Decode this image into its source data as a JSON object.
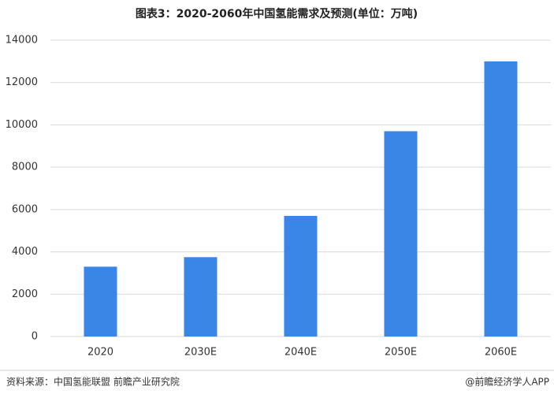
{
  "chart_data": {
    "type": "bar",
    "title": "图表3：2020-2060年中国氢能需求及预测(单位：万吨)",
    "categories": [
      "2020",
      "2030E",
      "2040E",
      "2050E",
      "2060E"
    ],
    "values": [
      3300,
      3750,
      5700,
      9700,
      13000
    ],
    "color": "#3a86e6",
    "ylim": [
      0,
      14000
    ],
    "yticks": [
      0,
      2000,
      4000,
      6000,
      8000,
      10000,
      12000,
      14000
    ],
    "grid": true,
    "source": "资料来源：中国氢能联盟 前瞻产业研究院",
    "credit": "@前瞻经济学人APP"
  }
}
